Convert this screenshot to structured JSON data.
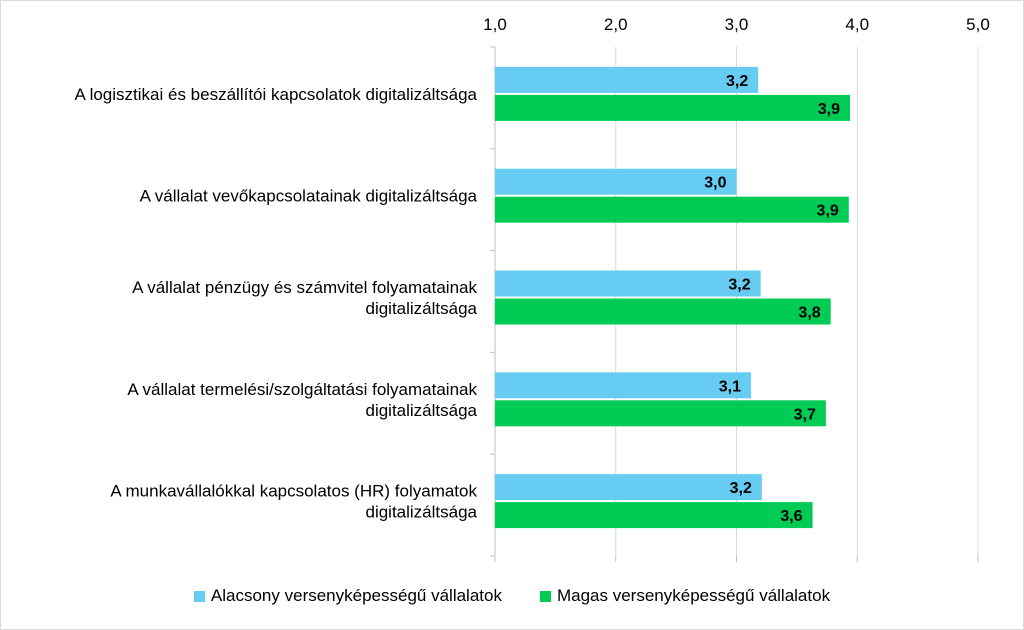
{
  "chart_data": {
    "type": "bar",
    "orientation": "horizontal",
    "categories": [
      [
        "A logisztikai és beszállítói kapcsolatok digitalizáltsága"
      ],
      [
        "A vállalat vevőkapcsolatainak digitalizáltsága"
      ],
      [
        "A vállalat pénzügy és számvitel folyamatainak",
        "digitalizáltsága"
      ],
      [
        "A vállalat termelési/szolgáltatási folyamatainak",
        "digitalizáltsága"
      ],
      [
        "A munkavállalókkal kapcsolatos (HR) folyamatok",
        "digitalizáltsága"
      ]
    ],
    "series": [
      {
        "name": "Alacsony versenyképességű vállalatok",
        "color": "#66ccf2",
        "values": [
          3.18,
          3.0,
          3.2,
          3.12,
          3.21
        ],
        "labels": [
          "3,2",
          "3,0",
          "3,2",
          "3,1",
          "3,2"
        ]
      },
      {
        "name": "Magas versenyképességű vállalatok",
        "color": "#00cc55",
        "values": [
          3.94,
          3.93,
          3.78,
          3.74,
          3.63
        ],
        "labels": [
          "3,9",
          "3,9",
          "3,8",
          "3,7",
          "3,6"
        ]
      }
    ],
    "xlim": [
      1.0,
      5.0
    ],
    "ticks": [
      1.0,
      2.0,
      3.0,
      4.0,
      5.0
    ],
    "tick_labels": [
      "1,0",
      "2,0",
      "3,0",
      "4,0",
      "5,0"
    ],
    "axis_position": "top",
    "grid": true,
    "gridline_color": "#d9d9d9",
    "legend_position": "bottom"
  }
}
